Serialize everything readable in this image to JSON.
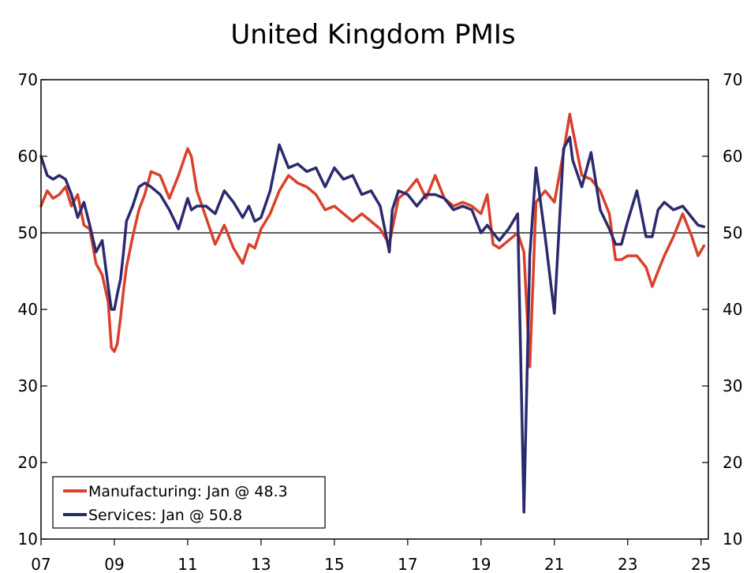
{
  "chart_data": {
    "type": "line",
    "title": "United Kingdom PMIs",
    "xlabel": "",
    "ylabel": "",
    "xlim": [
      2007.0,
      2025.2
    ],
    "ylim": [
      10,
      70
    ],
    "yticks": [
      10,
      20,
      30,
      40,
      50,
      60,
      70
    ],
    "xticks": [
      2007,
      2009,
      2011,
      2013,
      2015,
      2017,
      2019,
      2021,
      2023,
      2025
    ],
    "xtick_labels": [
      "07",
      "09",
      "11",
      "13",
      "15",
      "17",
      "19",
      "21",
      "23",
      "25"
    ],
    "reference_line": 50,
    "legend_position": "bottom-left",
    "series": [
      {
        "name": "Manufacturing: Jan @ 48.3",
        "color": "#d9412b",
        "x": [
          2007.0,
          2007.17,
          2007.33,
          2007.5,
          2007.67,
          2007.83,
          2008.0,
          2008.17,
          2008.33,
          2008.5,
          2008.67,
          2008.83,
          2008.92,
          2009.0,
          2009.08,
          2009.17,
          2009.25,
          2009.33,
          2009.5,
          2009.67,
          2009.83,
          2010.0,
          2010.25,
          2010.5,
          2010.75,
          2011.0,
          2011.1,
          2011.25,
          2011.5,
          2011.75,
          2012.0,
          2012.25,
          2012.5,
          2012.67,
          2012.83,
          2013.0,
          2013.25,
          2013.5,
          2013.75,
          2014.0,
          2014.25,
          2014.5,
          2014.75,
          2015.0,
          2015.25,
          2015.5,
          2015.75,
          2016.0,
          2016.25,
          2016.5,
          2016.58,
          2016.75,
          2017.0,
          2017.25,
          2017.5,
          2017.75,
          2018.0,
          2018.25,
          2018.5,
          2018.75,
          2019.0,
          2019.17,
          2019.33,
          2019.5,
          2019.75,
          2020.0,
          2020.17,
          2020.33,
          2020.5,
          2020.75,
          2021.0,
          2021.25,
          2021.42,
          2021.5,
          2021.75,
          2022.0,
          2022.25,
          2022.5,
          2022.67,
          2022.83,
          2023.0,
          2023.25,
          2023.5,
          2023.67,
          2023.83,
          2024.0,
          2024.25,
          2024.5,
          2024.75,
          2024.92,
          2025.08
        ],
        "values": [
          53.5,
          55.5,
          54.5,
          55.0,
          56.0,
          53.5,
          55.0,
          51.0,
          50.5,
          46.0,
          44.5,
          41.0,
          35.0,
          34.5,
          35.5,
          39.0,
          42.5,
          45.5,
          49.5,
          53.0,
          55.0,
          58.0,
          57.5,
          54.5,
          57.5,
          61.0,
          60.0,
          55.5,
          52.0,
          48.5,
          51.0,
          48.0,
          46.0,
          48.5,
          48.0,
          50.5,
          52.5,
          55.5,
          57.5,
          56.5,
          56.0,
          55.0,
          53.0,
          53.5,
          52.5,
          51.5,
          52.5,
          51.5,
          50.5,
          48.5,
          50.5,
          54.5,
          55.5,
          57.0,
          54.5,
          57.5,
          54.5,
          53.5,
          54.0,
          53.5,
          52.5,
          55.0,
          48.5,
          48.0,
          49.0,
          50.0,
          47.5,
          32.5,
          54.0,
          55.5,
          54.0,
          60.5,
          65.5,
          63.5,
          57.5,
          57.0,
          55.5,
          52.5,
          46.5,
          46.5,
          47.0,
          47.0,
          45.5,
          43.0,
          45.0,
          47.0,
          49.5,
          52.5,
          49.5,
          47.0,
          48.3
        ]
      },
      {
        "name": "Services: Jan @ 50.8",
        "color": "#2b2a6e",
        "x": [
          2007.0,
          2007.17,
          2007.33,
          2007.5,
          2007.67,
          2007.83,
          2008.0,
          2008.17,
          2008.33,
          2008.5,
          2008.67,
          2008.83,
          2008.92,
          2009.0,
          2009.08,
          2009.17,
          2009.25,
          2009.33,
          2009.5,
          2009.67,
          2009.83,
          2010.0,
          2010.25,
          2010.5,
          2010.75,
          2011.0,
          2011.1,
          2011.25,
          2011.5,
          2011.75,
          2012.0,
          2012.25,
          2012.5,
          2012.67,
          2012.83,
          2013.0,
          2013.25,
          2013.5,
          2013.75,
          2014.0,
          2014.25,
          2014.5,
          2014.75,
          2015.0,
          2015.25,
          2015.5,
          2015.75,
          2016.0,
          2016.25,
          2016.5,
          2016.58,
          2016.75,
          2017.0,
          2017.25,
          2017.5,
          2017.75,
          2018.0,
          2018.25,
          2018.5,
          2018.75,
          2019.0,
          2019.17,
          2019.33,
          2019.5,
          2019.75,
          2020.0,
          2020.17,
          2020.33,
          2020.5,
          2020.75,
          2021.0,
          2021.25,
          2021.42,
          2021.5,
          2021.75,
          2022.0,
          2022.25,
          2022.5,
          2022.67,
          2022.83,
          2023.0,
          2023.25,
          2023.5,
          2023.67,
          2023.83,
          2024.0,
          2024.25,
          2024.5,
          2024.75,
          2024.92,
          2025.08
        ],
        "values": [
          60.0,
          57.5,
          57.0,
          57.5,
          57.0,
          55.0,
          52.0,
          54.0,
          51.0,
          47.5,
          49.0,
          43.0,
          40.0,
          40.0,
          42.0,
          44.0,
          47.5,
          51.5,
          53.5,
          56.0,
          56.5,
          56.0,
          55.0,
          53.0,
          50.5,
          54.5,
          53.0,
          53.5,
          53.5,
          52.5,
          55.5,
          54.0,
          52.0,
          53.5,
          51.5,
          52.0,
          55.5,
          61.5,
          58.5,
          59.0,
          58.0,
          58.5,
          56.0,
          58.5,
          57.0,
          57.5,
          55.0,
          55.5,
          53.5,
          47.5,
          53.0,
          55.5,
          55.0,
          53.5,
          55.0,
          55.0,
          54.5,
          53.0,
          53.5,
          53.0,
          50.0,
          51.0,
          50.0,
          49.0,
          50.5,
          52.5,
          13.5,
          47.0,
          58.5,
          49.5,
          39.5,
          61.0,
          62.5,
          59.5,
          56.0,
          60.5,
          53.0,
          50.5,
          48.5,
          48.5,
          51.5,
          55.5,
          49.5,
          49.5,
          53.0,
          54.0,
          53.0,
          53.5,
          52.0,
          51.0,
          50.8
        ]
      }
    ]
  }
}
